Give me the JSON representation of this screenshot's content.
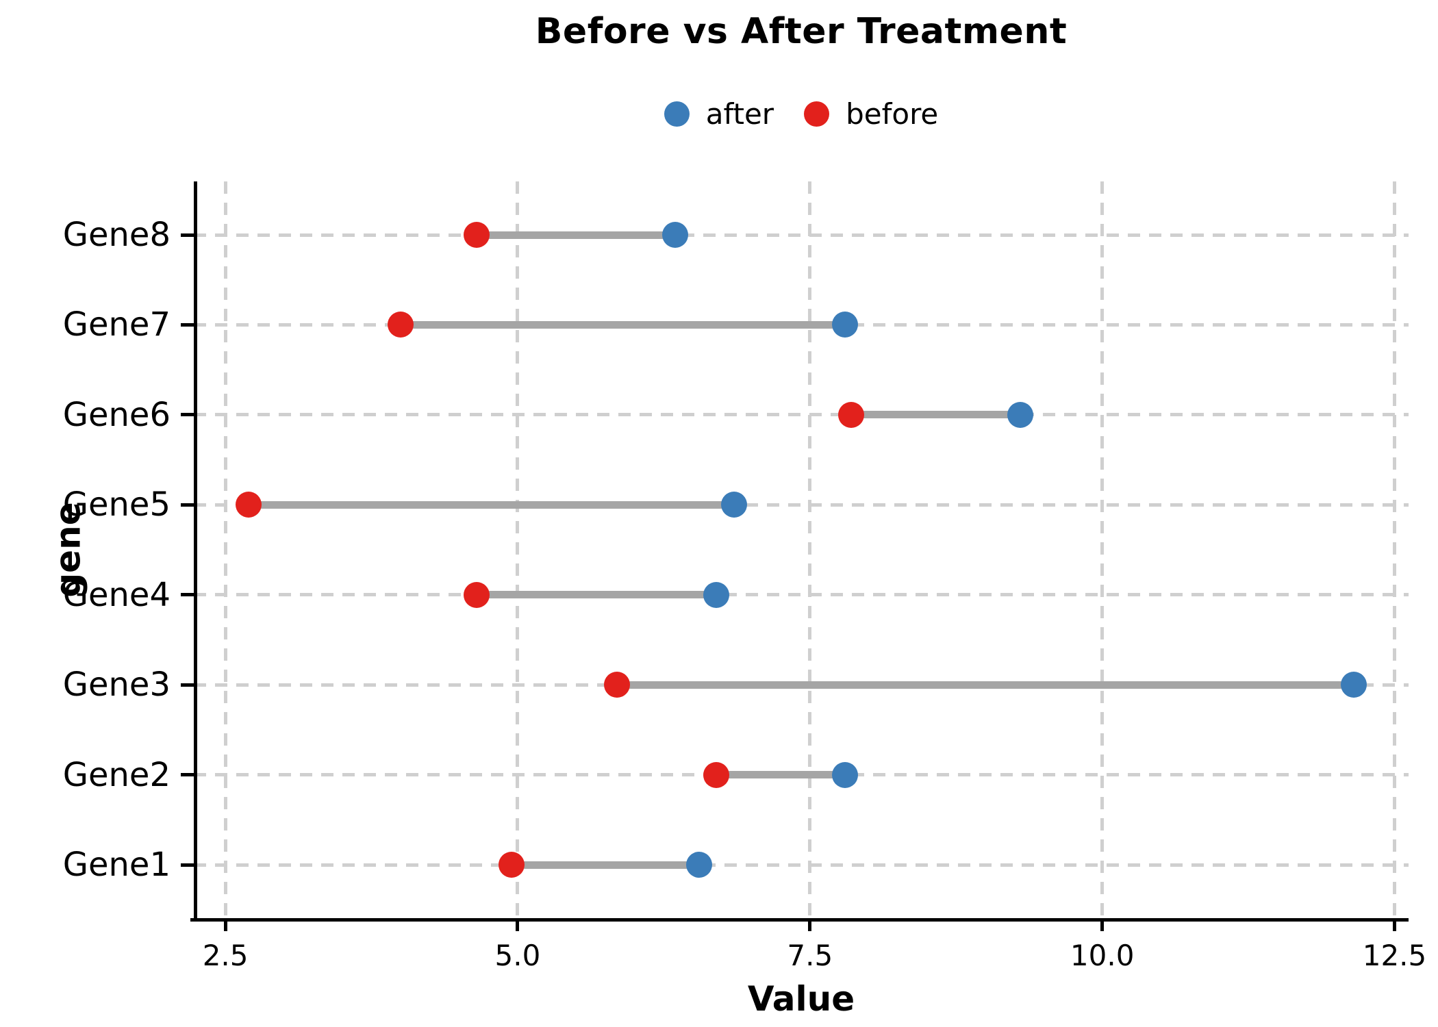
{
  "chart_data": {
    "type": "scatter",
    "variant": "dumbbell",
    "title": "Before vs After Treatment",
    "xlabel": "Value",
    "ylabel": "gene",
    "xlim": [
      2.23,
      12.62
    ],
    "x_ticks": [
      2.5,
      5.0,
      7.5,
      10.0,
      12.5
    ],
    "x_tick_labels": [
      "2.5",
      "5.0",
      "7.5",
      "10.0",
      "12.5"
    ],
    "grid": "dashed gray, vertical at x ticks and horizontal at each gene row",
    "spines": "left and bottom only, black",
    "categories": [
      "Gene8",
      "Gene7",
      "Gene6",
      "Gene5",
      "Gene4",
      "Gene3",
      "Gene2",
      "Gene1"
    ],
    "series": [
      {
        "name": "before",
        "color": "#e2211c",
        "values": [
          4.65,
          4.0,
          7.85,
          2.7,
          4.65,
          5.85,
          6.7,
          4.95
        ]
      },
      {
        "name": "after",
        "color": "#3b7cb8",
        "values": [
          6.35,
          7.8,
          9.3,
          6.85,
          6.7,
          12.15,
          7.8,
          6.55
        ]
      }
    ],
    "legend": {
      "position": "upper center",
      "items": [
        {
          "label": "after",
          "color": "#3b7cb8"
        },
        {
          "label": "before",
          "color": "#e2211c"
        }
      ]
    },
    "connector_color": "#a5a5a5",
    "grid_color": "#cfcfcf",
    "axis_color": "#000000"
  }
}
